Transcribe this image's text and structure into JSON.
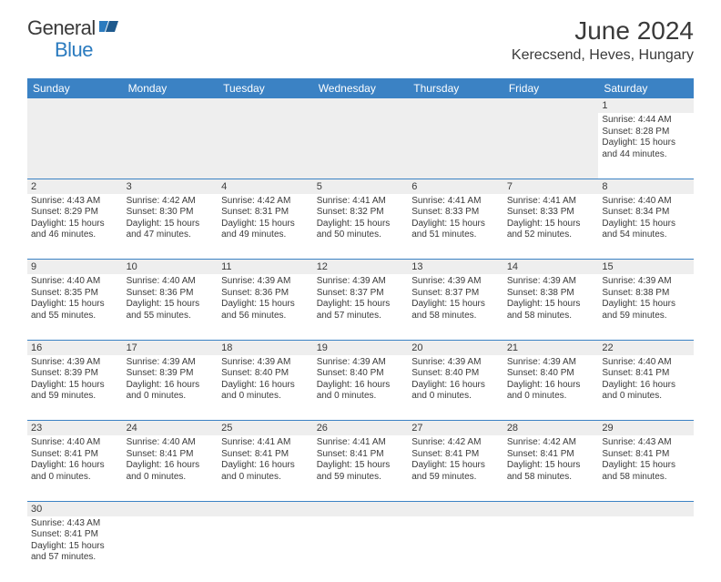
{
  "logo": {
    "general": "General",
    "blue": "Blue",
    "flag_color": "#2b7bbf"
  },
  "title": "June 2024",
  "location": "Kerecsend, Heves, Hungary",
  "header_bg": "#3b82c4",
  "days_of_week": [
    "Sunday",
    "Monday",
    "Tuesday",
    "Wednesday",
    "Thursday",
    "Friday",
    "Saturday"
  ],
  "weeks": [
    {
      "nums": [
        "",
        "",
        "",
        "",
        "",
        "",
        "1"
      ],
      "cells": [
        null,
        null,
        null,
        null,
        null,
        null,
        {
          "sunrise": "Sunrise: 4:44 AM",
          "sunset": "Sunset: 8:28 PM",
          "daylight": "Daylight: 15 hours and 44 minutes."
        }
      ]
    },
    {
      "nums": [
        "2",
        "3",
        "4",
        "5",
        "6",
        "7",
        "8"
      ],
      "cells": [
        {
          "sunrise": "Sunrise: 4:43 AM",
          "sunset": "Sunset: 8:29 PM",
          "daylight": "Daylight: 15 hours and 46 minutes."
        },
        {
          "sunrise": "Sunrise: 4:42 AM",
          "sunset": "Sunset: 8:30 PM",
          "daylight": "Daylight: 15 hours and 47 minutes."
        },
        {
          "sunrise": "Sunrise: 4:42 AM",
          "sunset": "Sunset: 8:31 PM",
          "daylight": "Daylight: 15 hours and 49 minutes."
        },
        {
          "sunrise": "Sunrise: 4:41 AM",
          "sunset": "Sunset: 8:32 PM",
          "daylight": "Daylight: 15 hours and 50 minutes."
        },
        {
          "sunrise": "Sunrise: 4:41 AM",
          "sunset": "Sunset: 8:33 PM",
          "daylight": "Daylight: 15 hours and 51 minutes."
        },
        {
          "sunrise": "Sunrise: 4:41 AM",
          "sunset": "Sunset: 8:33 PM",
          "daylight": "Daylight: 15 hours and 52 minutes."
        },
        {
          "sunrise": "Sunrise: 4:40 AM",
          "sunset": "Sunset: 8:34 PM",
          "daylight": "Daylight: 15 hours and 54 minutes."
        }
      ]
    },
    {
      "nums": [
        "9",
        "10",
        "11",
        "12",
        "13",
        "14",
        "15"
      ],
      "cells": [
        {
          "sunrise": "Sunrise: 4:40 AM",
          "sunset": "Sunset: 8:35 PM",
          "daylight": "Daylight: 15 hours and 55 minutes."
        },
        {
          "sunrise": "Sunrise: 4:40 AM",
          "sunset": "Sunset: 8:36 PM",
          "daylight": "Daylight: 15 hours and 55 minutes."
        },
        {
          "sunrise": "Sunrise: 4:39 AM",
          "sunset": "Sunset: 8:36 PM",
          "daylight": "Daylight: 15 hours and 56 minutes."
        },
        {
          "sunrise": "Sunrise: 4:39 AM",
          "sunset": "Sunset: 8:37 PM",
          "daylight": "Daylight: 15 hours and 57 minutes."
        },
        {
          "sunrise": "Sunrise: 4:39 AM",
          "sunset": "Sunset: 8:37 PM",
          "daylight": "Daylight: 15 hours and 58 minutes."
        },
        {
          "sunrise": "Sunrise: 4:39 AM",
          "sunset": "Sunset: 8:38 PM",
          "daylight": "Daylight: 15 hours and 58 minutes."
        },
        {
          "sunrise": "Sunrise: 4:39 AM",
          "sunset": "Sunset: 8:38 PM",
          "daylight": "Daylight: 15 hours and 59 minutes."
        }
      ]
    },
    {
      "nums": [
        "16",
        "17",
        "18",
        "19",
        "20",
        "21",
        "22"
      ],
      "cells": [
        {
          "sunrise": "Sunrise: 4:39 AM",
          "sunset": "Sunset: 8:39 PM",
          "daylight": "Daylight: 15 hours and 59 minutes."
        },
        {
          "sunrise": "Sunrise: 4:39 AM",
          "sunset": "Sunset: 8:39 PM",
          "daylight": "Daylight: 16 hours and 0 minutes."
        },
        {
          "sunrise": "Sunrise: 4:39 AM",
          "sunset": "Sunset: 8:40 PM",
          "daylight": "Daylight: 16 hours and 0 minutes."
        },
        {
          "sunrise": "Sunrise: 4:39 AM",
          "sunset": "Sunset: 8:40 PM",
          "daylight": "Daylight: 16 hours and 0 minutes."
        },
        {
          "sunrise": "Sunrise: 4:39 AM",
          "sunset": "Sunset: 8:40 PM",
          "daylight": "Daylight: 16 hours and 0 minutes."
        },
        {
          "sunrise": "Sunrise: 4:39 AM",
          "sunset": "Sunset: 8:40 PM",
          "daylight": "Daylight: 16 hours and 0 minutes."
        },
        {
          "sunrise": "Sunrise: 4:40 AM",
          "sunset": "Sunset: 8:41 PM",
          "daylight": "Daylight: 16 hours and 0 minutes."
        }
      ]
    },
    {
      "nums": [
        "23",
        "24",
        "25",
        "26",
        "27",
        "28",
        "29"
      ],
      "cells": [
        {
          "sunrise": "Sunrise: 4:40 AM",
          "sunset": "Sunset: 8:41 PM",
          "daylight": "Daylight: 16 hours and 0 minutes."
        },
        {
          "sunrise": "Sunrise: 4:40 AM",
          "sunset": "Sunset: 8:41 PM",
          "daylight": "Daylight: 16 hours and 0 minutes."
        },
        {
          "sunrise": "Sunrise: 4:41 AM",
          "sunset": "Sunset: 8:41 PM",
          "daylight": "Daylight: 16 hours and 0 minutes."
        },
        {
          "sunrise": "Sunrise: 4:41 AM",
          "sunset": "Sunset: 8:41 PM",
          "daylight": "Daylight: 15 hours and 59 minutes."
        },
        {
          "sunrise": "Sunrise: 4:42 AM",
          "sunset": "Sunset: 8:41 PM",
          "daylight": "Daylight: 15 hours and 59 minutes."
        },
        {
          "sunrise": "Sunrise: 4:42 AM",
          "sunset": "Sunset: 8:41 PM",
          "daylight": "Daylight: 15 hours and 58 minutes."
        },
        {
          "sunrise": "Sunrise: 4:43 AM",
          "sunset": "Sunset: 8:41 PM",
          "daylight": "Daylight: 15 hours and 58 minutes."
        }
      ]
    },
    {
      "nums": [
        "30",
        "",
        "",
        "",
        "",
        "",
        ""
      ],
      "cells": [
        {
          "sunrise": "Sunrise: 4:43 AM",
          "sunset": "Sunset: 8:41 PM",
          "daylight": "Daylight: 15 hours and 57 minutes."
        },
        null,
        null,
        null,
        null,
        null,
        null
      ]
    }
  ]
}
